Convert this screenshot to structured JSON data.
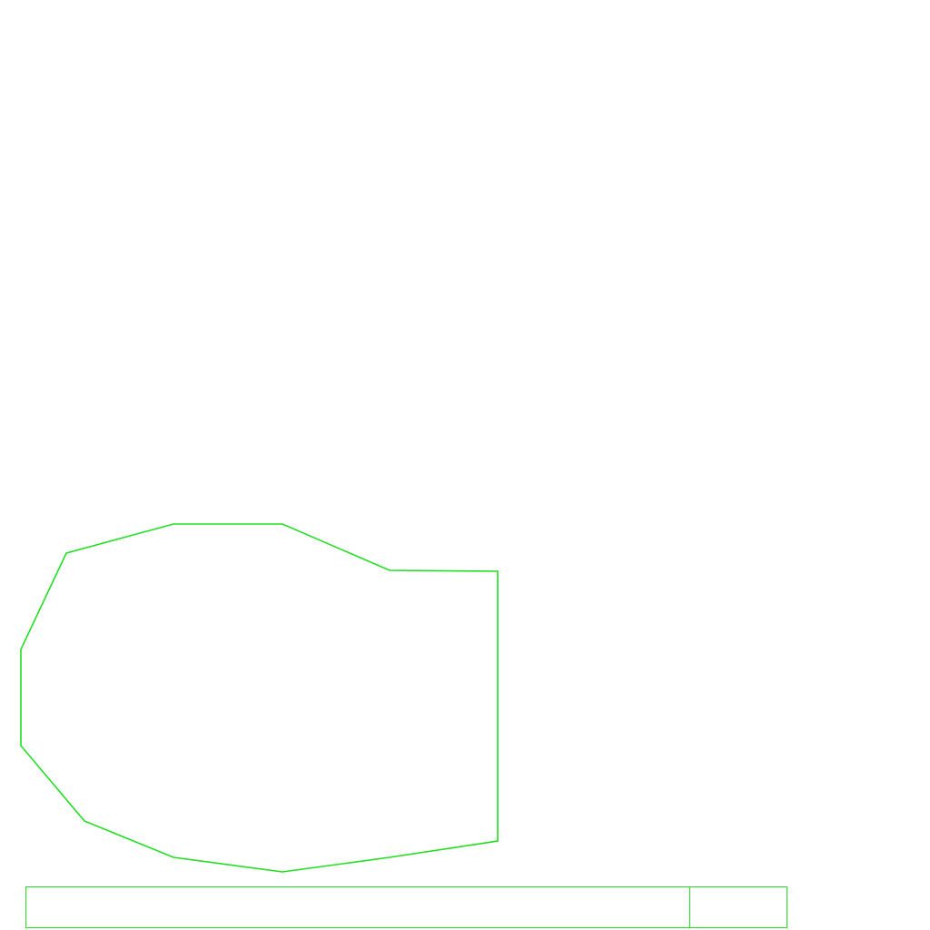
{
  "colors": {
    "background": "#ffffff",
    "stroke": "#22dd22"
  },
  "shapes": [
    {
      "name": "polygon-outline",
      "type": "polygon"
    },
    {
      "name": "rectangle-bar",
      "type": "rectangle",
      "divided": true
    }
  ]
}
